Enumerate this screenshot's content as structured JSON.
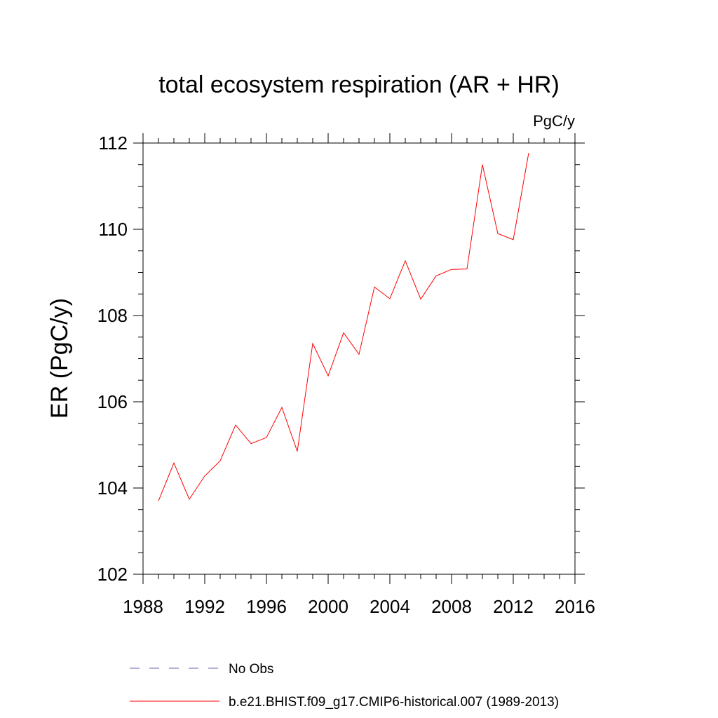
{
  "chart_data": {
    "type": "line",
    "title": "total ecosystem respiration (AR + HR)",
    "units": "PgC/y",
    "ylabel": "ER  (PgC/y)",
    "xlabel": "",
    "xlim": [
      1988,
      2016
    ],
    "ylim": [
      102,
      112
    ],
    "xticks": [
      1988,
      1992,
      1996,
      2000,
      2004,
      2008,
      2012,
      2016
    ],
    "yticks": [
      102,
      104,
      106,
      108,
      110,
      112
    ],
    "grid": false,
    "legend_position": "bottom",
    "series": [
      {
        "name": "b.e21.BHIST.f09_g17.CMIP6-historical.007 (1989-2013)",
        "color": "#ff0000",
        "style": "solid",
        "x": [
          1989,
          1990,
          1991,
          1992,
          1993,
          1994,
          1995,
          1996,
          1997,
          1998,
          1999,
          2000,
          2001,
          2002,
          2003,
          2004,
          2005,
          2006,
          2007,
          2008,
          2009,
          2010,
          2011,
          2012,
          2013
        ],
        "y": [
          103.7,
          104.58,
          103.74,
          104.28,
          104.63,
          105.46,
          105.03,
          105.17,
          105.87,
          104.85,
          107.35,
          106.6,
          107.6,
          107.1,
          108.66,
          108.39,
          109.27,
          108.38,
          108.92,
          109.07,
          109.08,
          111.5,
          109.9,
          109.76,
          111.77
        ]
      }
    ],
    "legend": [
      {
        "label": "No Obs",
        "color": "#6b5fb5",
        "style": "dashed"
      },
      {
        "label": "b.e21.BHIST.f09_g17.CMIP6-historical.007 (1989-2013)",
        "color": "#ff0000",
        "style": "solid"
      }
    ]
  }
}
